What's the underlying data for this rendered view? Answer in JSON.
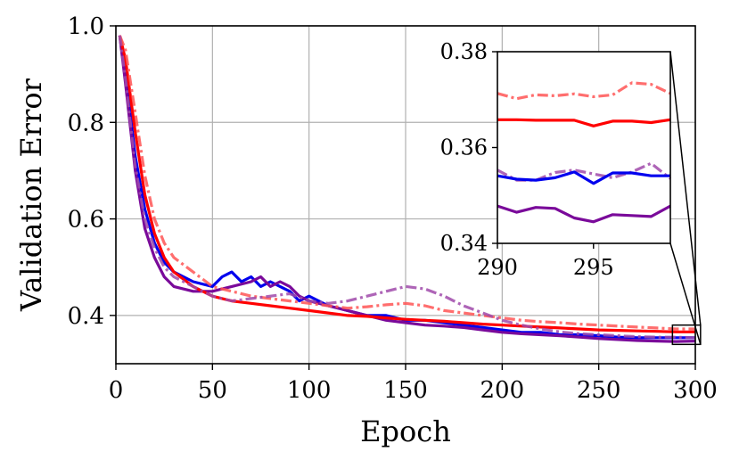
{
  "chart_data": [
    {
      "type": "line",
      "xlabel": "Epoch",
      "ylabel": "Validation Error",
      "xlim": [
        0,
        300
      ],
      "ylim": [
        0.3,
        1.0
      ],
      "xticks": [
        0,
        50,
        100,
        150,
        200,
        250,
        300
      ],
      "xtick_labels": [
        "0",
        "50",
        "100",
        "150",
        "200",
        "250",
        "300"
      ],
      "yticks": [
        0.4,
        0.6,
        0.8,
        1.0
      ],
      "ytick_labels": [
        "0.4",
        "0.6",
        "0.8",
        "1.0"
      ],
      "grid": true,
      "legend": "none",
      "series": [
        {
          "color": "#0000ee",
          "style": "solid",
          "x": [
            2,
            5,
            10,
            15,
            20,
            25,
            30,
            40,
            50,
            55,
            60,
            65,
            70,
            75,
            80,
            85,
            90,
            95,
            100,
            110,
            120,
            130,
            140,
            150,
            160,
            170,
            180,
            190,
            200,
            210,
            220,
            230,
            240,
            250,
            260,
            270,
            280,
            290,
            300
          ],
          "y": [
            0.98,
            0.9,
            0.73,
            0.62,
            0.55,
            0.51,
            0.49,
            0.47,
            0.46,
            0.48,
            0.49,
            0.47,
            0.48,
            0.46,
            0.47,
            0.46,
            0.45,
            0.43,
            0.44,
            0.42,
            0.41,
            0.4,
            0.4,
            0.39,
            0.39,
            0.385,
            0.38,
            0.375,
            0.37,
            0.365,
            0.365,
            0.36,
            0.36,
            0.358,
            0.355,
            0.354,
            0.354,
            0.354,
            0.354
          ]
        },
        {
          "color": "#7a0a9a",
          "style": "solid",
          "x": [
            2,
            5,
            10,
            15,
            20,
            25,
            30,
            40,
            50,
            60,
            70,
            75,
            80,
            85,
            90,
            95,
            100,
            110,
            120,
            130,
            140,
            150,
            160,
            170,
            180,
            190,
            200,
            210,
            220,
            230,
            240,
            250,
            260,
            270,
            280,
            290,
            300
          ],
          "y": [
            0.98,
            0.88,
            0.7,
            0.58,
            0.52,
            0.48,
            0.46,
            0.45,
            0.45,
            0.46,
            0.47,
            0.48,
            0.46,
            0.47,
            0.46,
            0.44,
            0.43,
            0.42,
            0.41,
            0.4,
            0.39,
            0.385,
            0.38,
            0.378,
            0.375,
            0.37,
            0.365,
            0.362,
            0.36,
            0.358,
            0.355,
            0.352,
            0.35,
            0.348,
            0.347,
            0.346,
            0.347
          ]
        },
        {
          "color": "#ff0000",
          "style": "solid",
          "x": [
            2,
            5,
            10,
            15,
            20,
            25,
            30,
            40,
            50,
            60,
            70,
            80,
            90,
            100,
            110,
            120,
            130,
            140,
            150,
            160,
            170,
            180,
            190,
            200,
            210,
            220,
            230,
            240,
            250,
            260,
            270,
            280,
            290,
            300
          ],
          "y": [
            0.98,
            0.93,
            0.78,
            0.65,
            0.57,
            0.52,
            0.49,
            0.46,
            0.44,
            0.43,
            0.425,
            0.42,
            0.415,
            0.41,
            0.405,
            0.4,
            0.398,
            0.395,
            0.392,
            0.39,
            0.388,
            0.385,
            0.382,
            0.38,
            0.378,
            0.376,
            0.374,
            0.372,
            0.37,
            0.369,
            0.368,
            0.367,
            0.366,
            0.366
          ]
        },
        {
          "color": "#ff5555",
          "style": "dashdot",
          "x": [
            2,
            5,
            10,
            15,
            20,
            25,
            30,
            40,
            50,
            60,
            70,
            80,
            90,
            100,
            110,
            120,
            130,
            140,
            150,
            160,
            170,
            180,
            190,
            200,
            210,
            220,
            230,
            240,
            250,
            260,
            270,
            280,
            290,
            300
          ],
          "y": [
            0.98,
            0.95,
            0.82,
            0.69,
            0.6,
            0.55,
            0.52,
            0.49,
            0.46,
            0.45,
            0.44,
            0.435,
            0.43,
            0.425,
            0.42,
            0.415,
            0.418,
            0.422,
            0.425,
            0.42,
            0.41,
            0.405,
            0.4,
            0.395,
            0.39,
            0.387,
            0.385,
            0.382,
            0.38,
            0.378,
            0.376,
            0.374,
            0.372,
            0.372
          ]
        },
        {
          "color": "#a04aaa",
          "style": "dashdot",
          "x": [
            2,
            5,
            10,
            15,
            20,
            25,
            30,
            40,
            50,
            60,
            70,
            80,
            90,
            100,
            110,
            120,
            130,
            140,
            150,
            160,
            170,
            180,
            190,
            200,
            210,
            220,
            230,
            240,
            250,
            260,
            270,
            280,
            290,
            300
          ],
          "y": [
            0.98,
            0.89,
            0.71,
            0.6,
            0.54,
            0.5,
            0.48,
            0.46,
            0.44,
            0.43,
            0.435,
            0.44,
            0.445,
            0.43,
            0.425,
            0.43,
            0.44,
            0.45,
            0.46,
            0.455,
            0.44,
            0.42,
            0.405,
            0.39,
            0.38,
            0.372,
            0.366,
            0.362,
            0.36,
            0.358,
            0.356,
            0.355,
            0.355,
            0.354
          ]
        }
      ]
    },
    {
      "type": "line",
      "xlim": [
        290,
        299
      ],
      "ylim": [
        0.34,
        0.38
      ],
      "xticks": [
        290,
        295
      ],
      "xtick_labels": [
        "290",
        "295"
      ],
      "yticks": [
        0.34,
        0.36,
        0.38
      ],
      "ytick_labels": [
        "0.34",
        "0.36",
        "0.38"
      ],
      "grid": false,
      "series": [
        {
          "color": "#ff5555",
          "style": "dashdot",
          "x": [
            290,
            291,
            292,
            293,
            294,
            295,
            296,
            297,
            298,
            299
          ],
          "y": [
            0.3713,
            0.3702,
            0.371,
            0.3708,
            0.3712,
            0.3706,
            0.371,
            0.3735,
            0.3732,
            0.3713
          ]
        },
        {
          "color": "#ff0000",
          "style": "solid",
          "x": [
            290,
            291,
            292,
            293,
            294,
            295,
            296,
            297,
            298,
            299
          ],
          "y": [
            0.3658,
            0.3658,
            0.3657,
            0.3657,
            0.3657,
            0.3645,
            0.3655,
            0.3655,
            0.3652,
            0.3658
          ]
        },
        {
          "color": "#a04aaa",
          "style": "dashdot",
          "x": [
            290,
            291,
            292,
            293,
            294,
            295,
            296,
            297,
            298,
            299
          ],
          "y": [
            0.3553,
            0.3532,
            0.3532,
            0.3548,
            0.3553,
            0.3545,
            0.3537,
            0.3549,
            0.3567,
            0.3535
          ]
        },
        {
          "color": "#0000ee",
          "style": "solid",
          "x": [
            290,
            291,
            292,
            293,
            294,
            295,
            296,
            297,
            298,
            299
          ],
          "y": [
            0.3541,
            0.3534,
            0.3532,
            0.3537,
            0.3549,
            0.3525,
            0.3547,
            0.3547,
            0.3541,
            0.3541
          ]
        },
        {
          "color": "#7a0a9a",
          "style": "solid",
          "x": [
            290,
            291,
            292,
            293,
            294,
            295,
            296,
            297,
            298,
            299
          ],
          "y": [
            0.3478,
            0.3465,
            0.3475,
            0.3473,
            0.3453,
            0.3445,
            0.346,
            0.3458,
            0.3456,
            0.3478
          ]
        }
      ]
    }
  ]
}
